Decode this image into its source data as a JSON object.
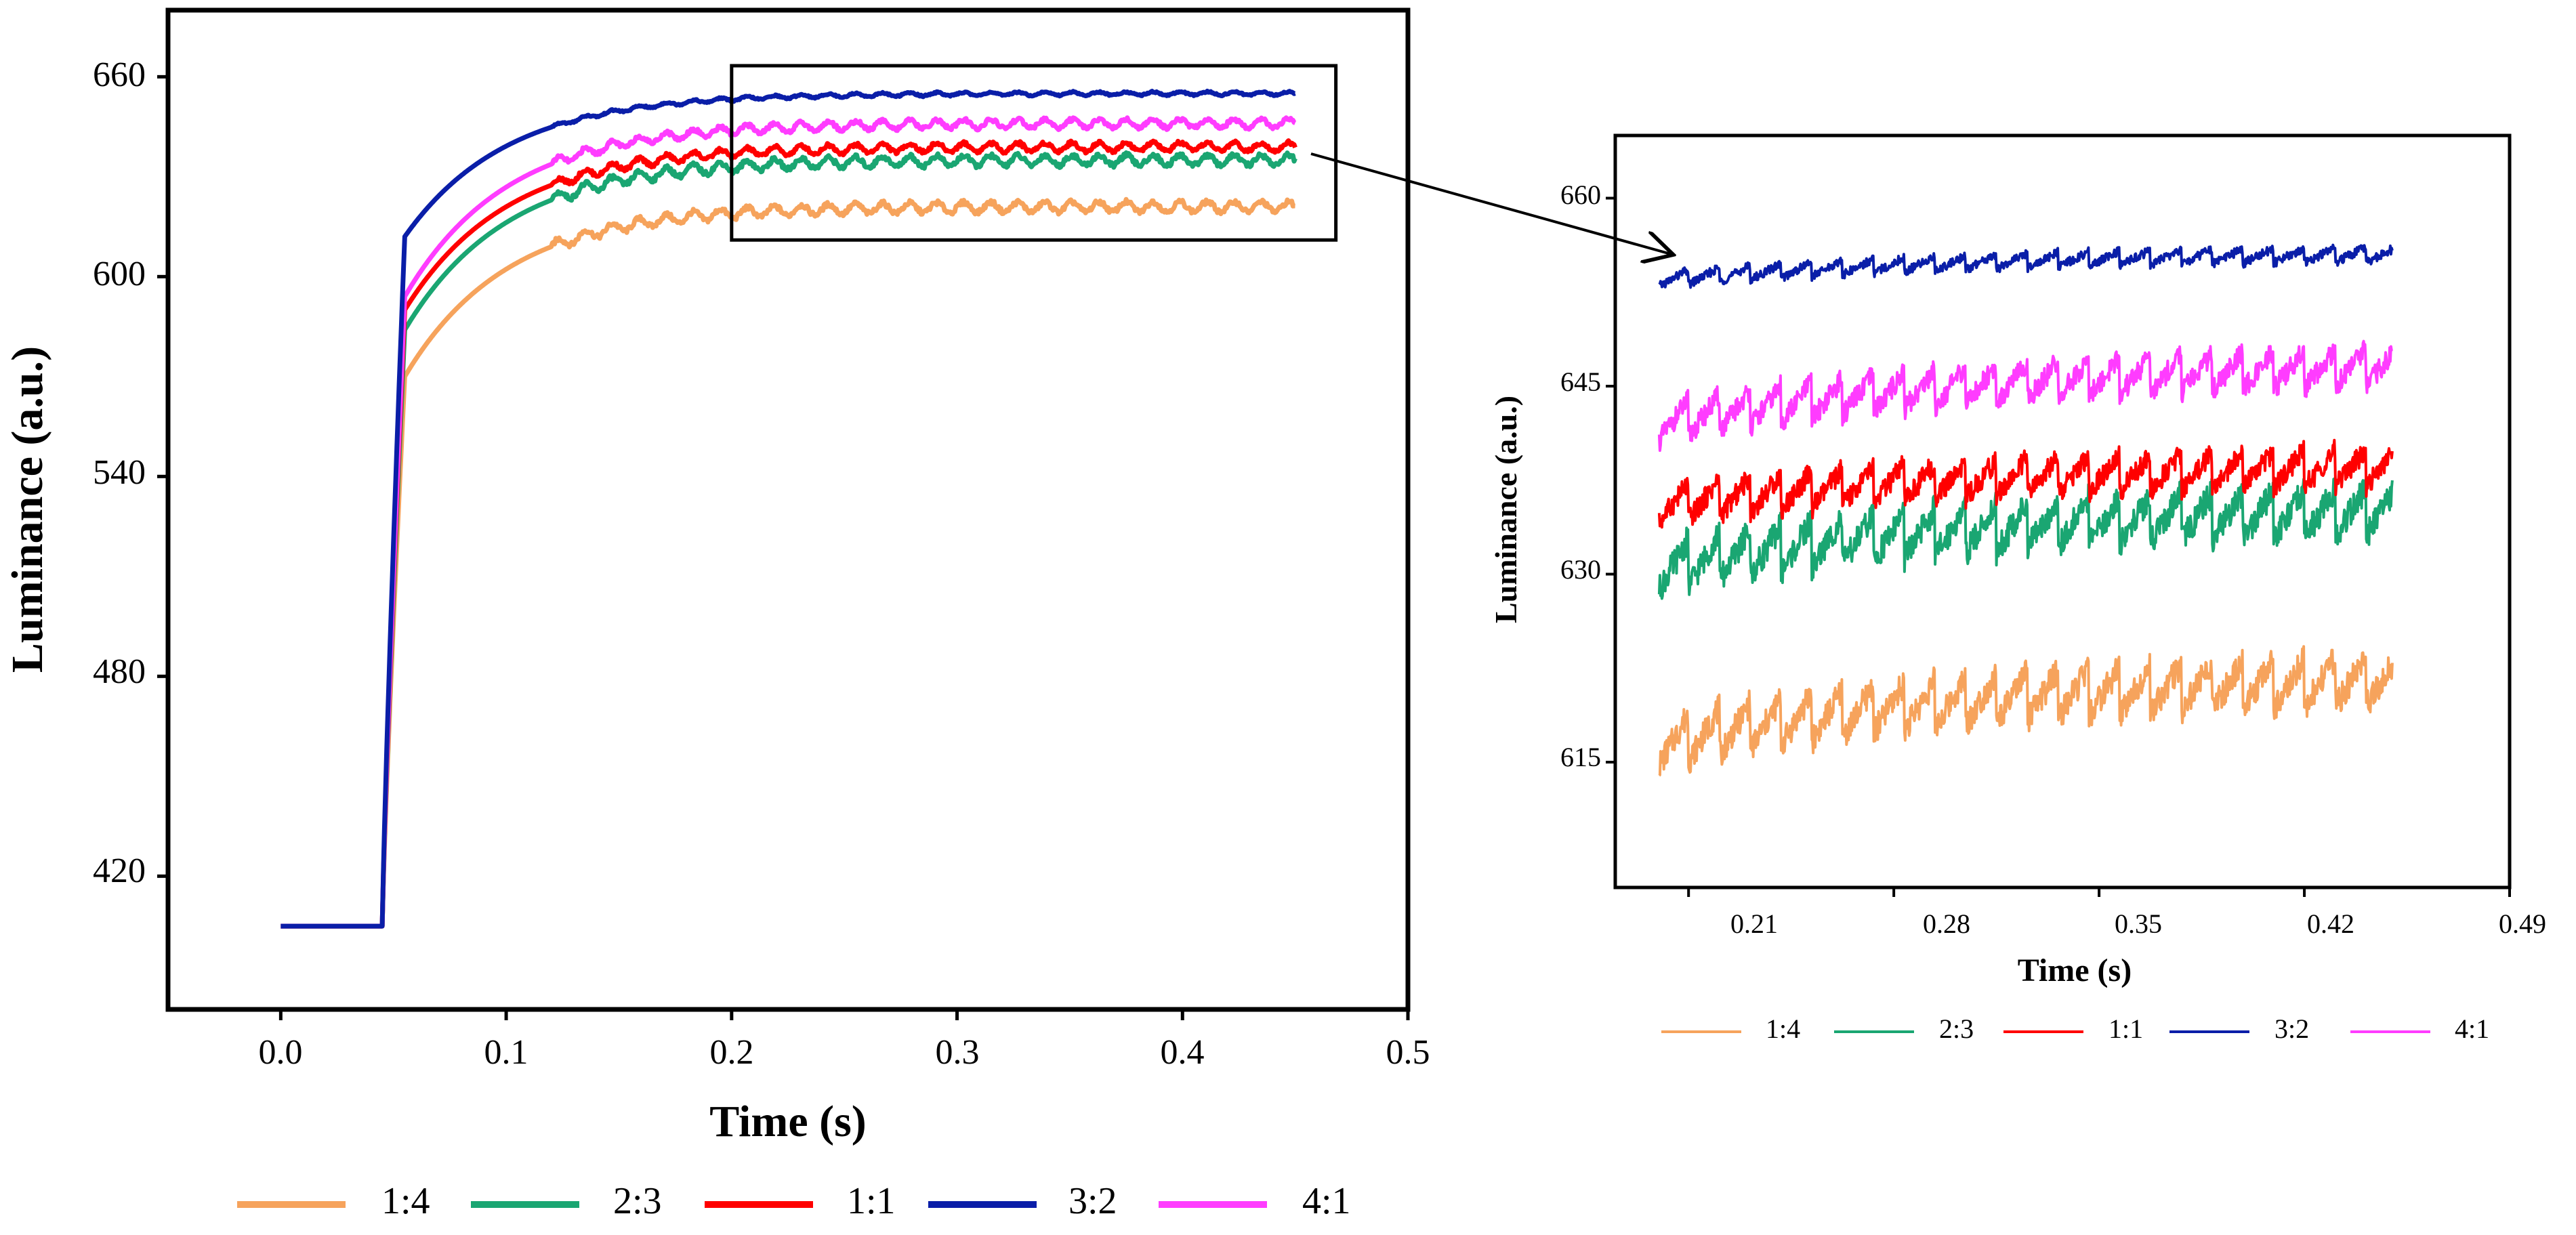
{
  "chart_data": [
    {
      "id": "main",
      "type": "line",
      "title": "",
      "xlabel": "Time (s)",
      "ylabel": "Luminance (a.u.)",
      "xlim": [
        -0.05,
        0.5
      ],
      "ylim": [
        380,
        680
      ],
      "x_ticks": [
        0.0,
        0.1,
        0.2,
        0.3,
        0.4,
        0.5
      ],
      "x_tick_labels": [
        "0.0",
        "0.1",
        "0.2",
        "0.3",
        "0.4",
        "0.5"
      ],
      "y_ticks": [
        420,
        480,
        540,
        600,
        660
      ],
      "y_tick_labels": [
        "420",
        "480",
        "540",
        "600",
        "660"
      ],
      "zoom_box": {
        "x": [
          0.2,
          0.45
        ],
        "y": [
          611,
          680
        ]
      },
      "legend_position": "bottom",
      "series": [
        {
          "name": "1:4",
          "color": "#F6A35C",
          "baseline": 405,
          "step_time": 0.045,
          "plateau": 621,
          "knee": 570,
          "ripple": 3
        },
        {
          "name": "2:3",
          "color": "#1AA672",
          "baseline": 405,
          "step_time": 0.045,
          "plateau": 635,
          "knee": 584,
          "ripple": 3
        },
        {
          "name": "1:1",
          "color": "#FF0000",
          "baseline": 405,
          "step_time": 0.045,
          "plateau": 639,
          "knee": 590,
          "ripple": 2.5
        },
        {
          "name": "3:2",
          "color": "#0A1EA8",
          "baseline": 405,
          "step_time": 0.045,
          "plateau": 655,
          "knee": 612,
          "ripple": 1
        },
        {
          "name": "4:1",
          "color": "#FF3CFF",
          "baseline": 405,
          "step_time": 0.045,
          "plateau": 646,
          "knee": 594,
          "ripple": 2.5
        }
      ]
    },
    {
      "id": "zoom",
      "type": "line",
      "title": "",
      "xlabel": "Time (s)",
      "ylabel": "Luminance (a.u.)",
      "xlim": [
        0.185,
        0.49
      ],
      "ylim": [
        605,
        665
      ],
      "x_ticks": [
        0.21,
        0.28,
        0.35,
        0.42,
        0.49
      ],
      "x_tick_labels": [
        "0.21",
        "0.28",
        "0.35",
        "0.42",
        "0.49"
      ],
      "y_ticks": [
        615,
        630,
        645,
        660
      ],
      "y_tick_labels": [
        "615",
        "630",
        "645",
        "660"
      ],
      "x_range_data": [
        0.2,
        0.45
      ],
      "legend_position": "bottom",
      "series": [
        {
          "name": "1:4",
          "color": "#F6A35C",
          "start": 616.5,
          "end": 621.5,
          "ripple": 3.2
        },
        {
          "name": "2:3",
          "color": "#1AA672",
          "start": 630.5,
          "end": 635,
          "ripple": 3.2
        },
        {
          "name": "1:1",
          "color": "#FF0000",
          "start": 635.5,
          "end": 638.5,
          "ripple": 2.5
        },
        {
          "name": "3:2",
          "color": "#0A1EA8",
          "start": 653.5,
          "end": 655.5,
          "ripple": 1.0
        },
        {
          "name": "4:1",
          "color": "#FF3CFF",
          "start": 642,
          "end": 646.5,
          "ripple": 2.5
        }
      ]
    }
  ]
}
